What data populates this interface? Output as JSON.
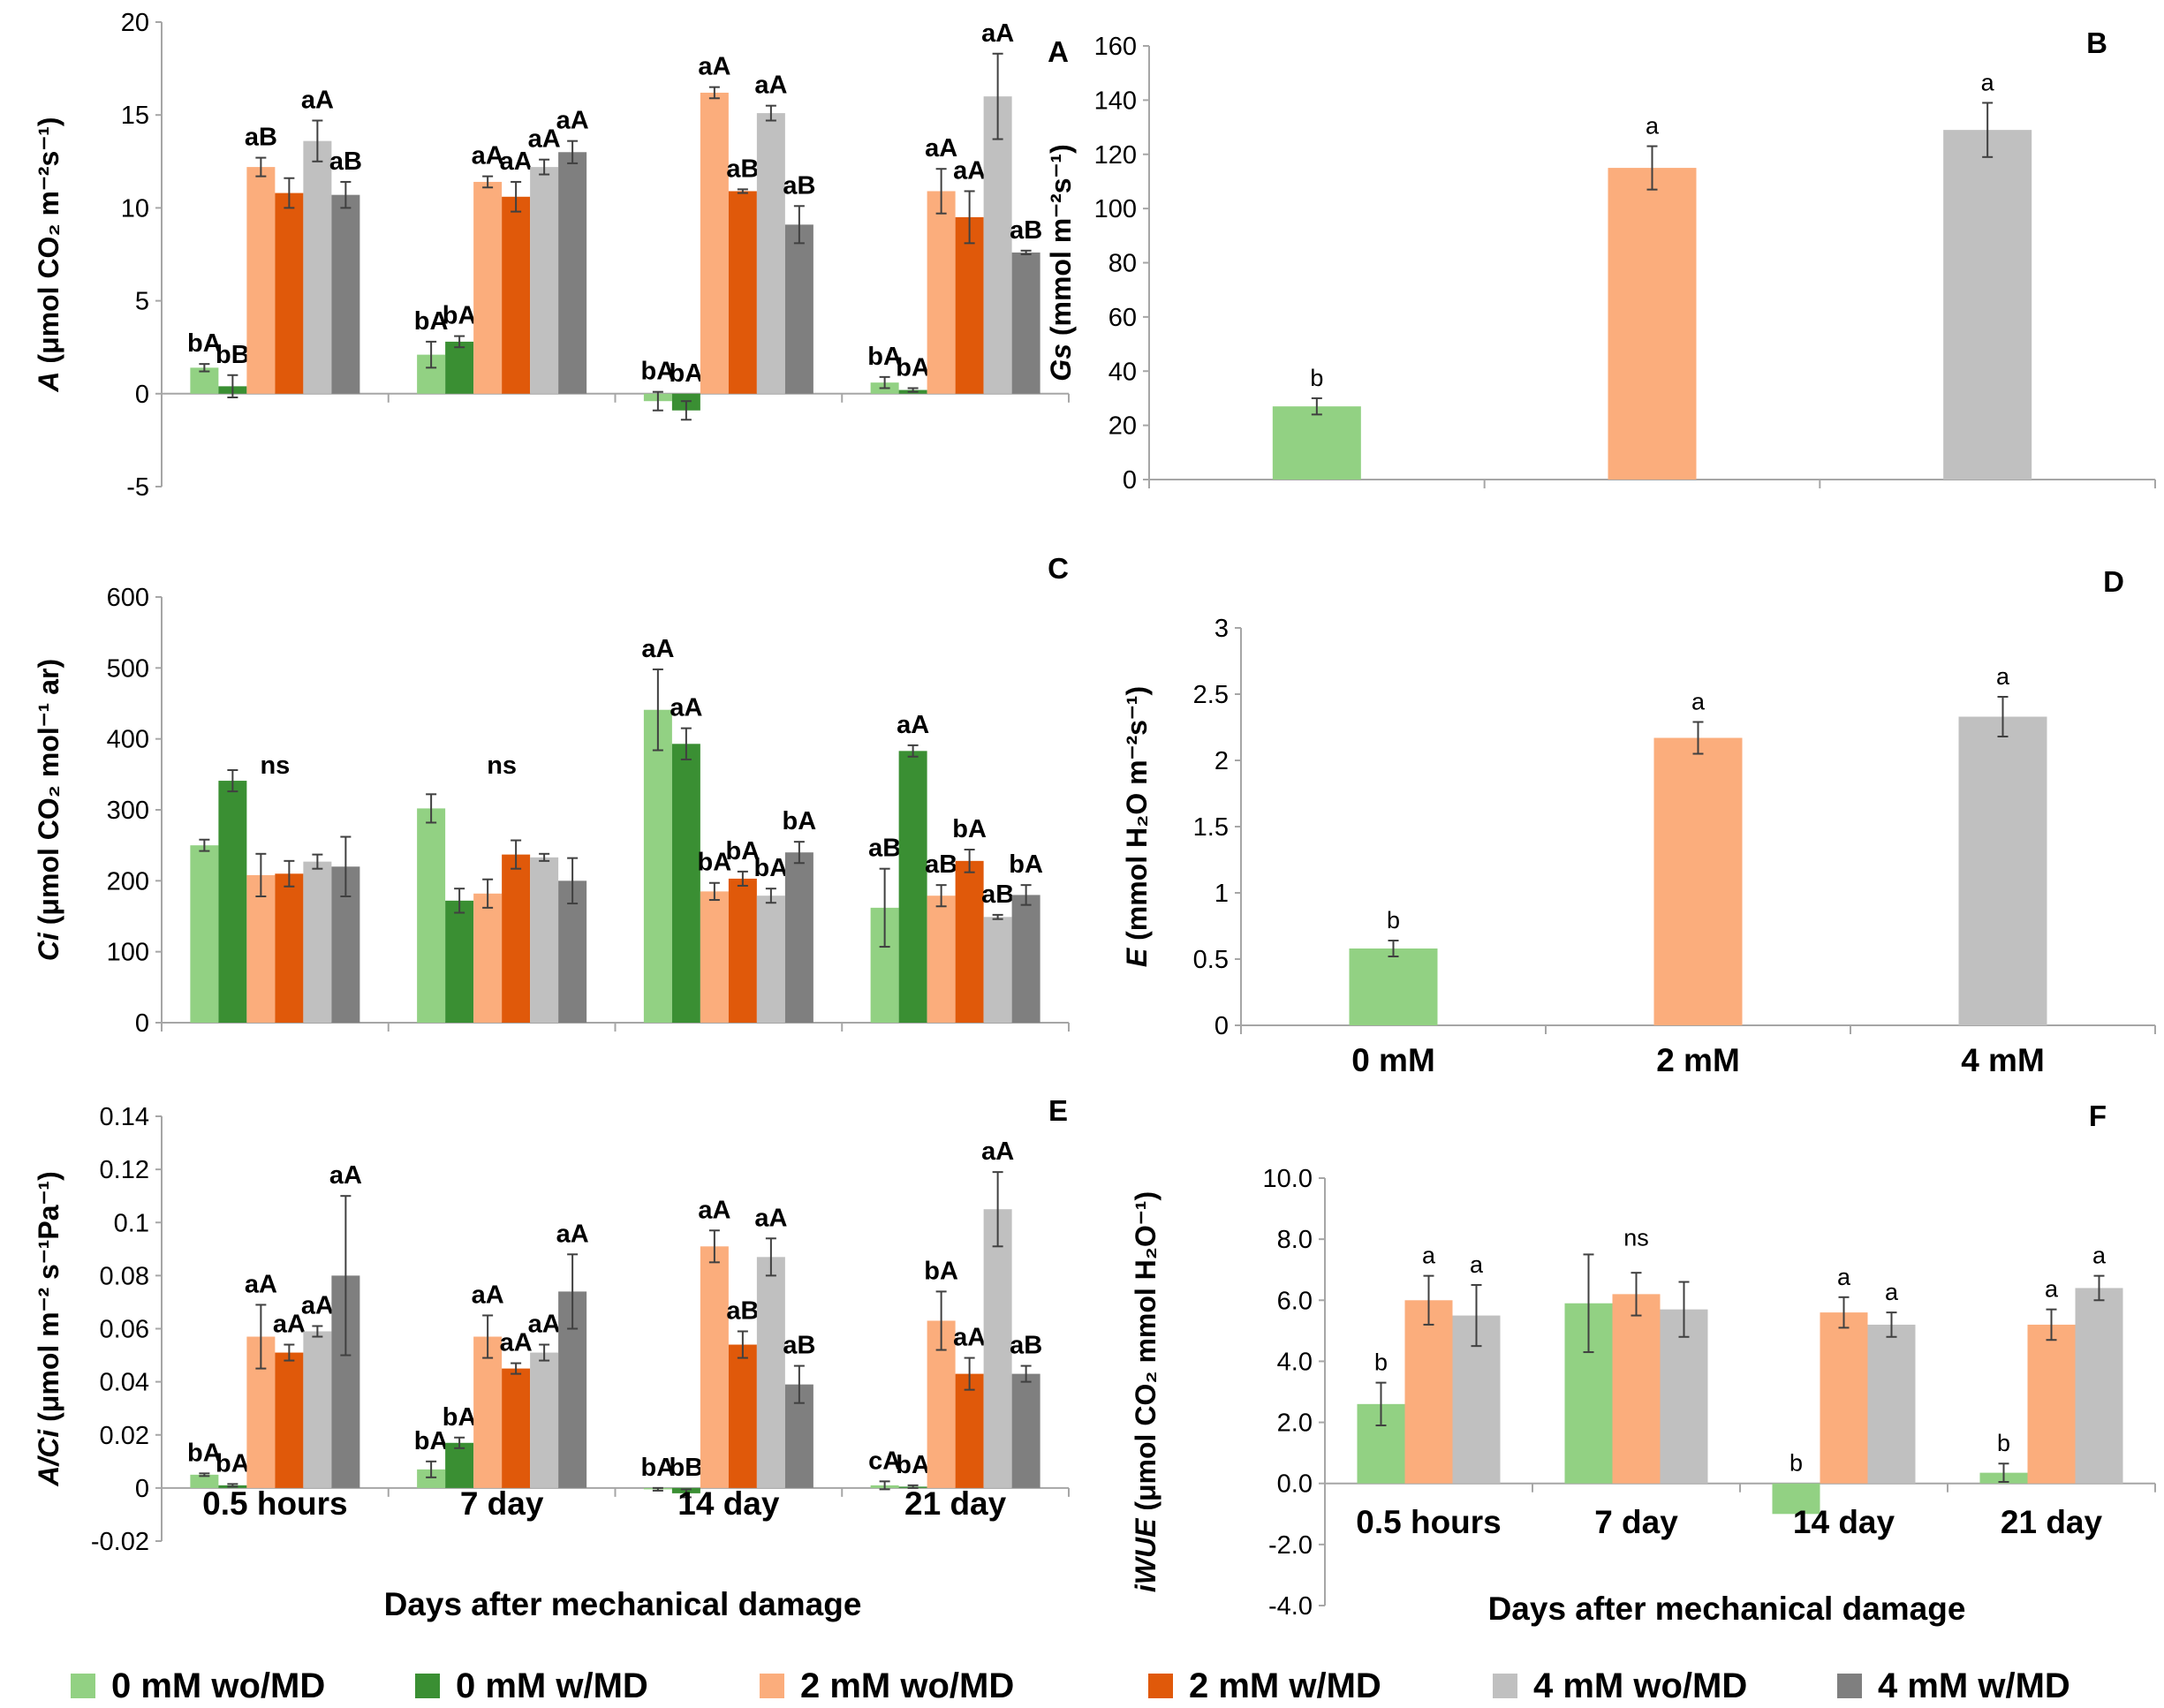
{
  "series_names": [
    "0 mM wo/MD",
    "0 mM w/MD",
    "2 mM wo/MD",
    "2 mM w/MD",
    "4 mM wo/MD",
    "4 mM w/MD"
  ],
  "colors": {
    "0 mM wo/MD": "#92d183",
    "0 mM w/MD": "#3a8f33",
    "2 mM wo/MD": "#fbad7c",
    "2 mM w/MD": "#e0590a",
    "4 mM wo/MD": "#c0c0c0",
    "4 mM w/MD": "#7f7f7f"
  },
  "x_axis_title": "Days after mechanical damage",
  "chart_data": [
    {
      "panel": "A",
      "type": "bar",
      "ylabel_italic": "A",
      "ylabel_rest": " (μmol CO₂ m⁻²s⁻¹)",
      "ylim": [
        -5,
        20
      ],
      "yticks": [
        "20",
        "15",
        "10",
        "5",
        "0",
        "-5"
      ],
      "ytick_values": [
        20,
        15,
        10,
        5,
        0,
        -5
      ],
      "categories": [
        "0.5 hours",
        "7 day",
        "14 day",
        "21 day"
      ],
      "show_category_labels": false,
      "series": [
        {
          "name": "0 mM wo/MD",
          "values": [
            1.4,
            2.1,
            -0.4,
            0.6
          ],
          "errors": [
            0.2,
            0.7,
            0.5,
            0.3
          ],
          "labels": [
            "bA",
            "bA",
            "bA",
            "bA"
          ]
        },
        {
          "name": "0 mM w/MD",
          "values": [
            0.4,
            2.8,
            -0.9,
            0.2
          ],
          "errors": [
            0.6,
            0.3,
            0.5,
            0.1
          ],
          "labels": [
            "bB",
            "bA",
            "bA",
            "bA"
          ]
        },
        {
          "name": "2 mM wo/MD",
          "values": [
            12.2,
            11.4,
            16.2,
            10.9
          ],
          "errors": [
            0.5,
            0.3,
            0.3,
            1.2
          ],
          "labels": [
            "aB",
            "aA",
            "aA",
            "aA"
          ]
        },
        {
          "name": "2 mM w/MD",
          "values": [
            10.8,
            10.6,
            10.9,
            9.5
          ],
          "errors": [
            0.8,
            0.8,
            0.1,
            1.4
          ],
          "labels": [
            "",
            "aA",
            "aB",
            "aA"
          ]
        },
        {
          "name": "4 mM wo/MD",
          "values": [
            13.6,
            12.2,
            15.1,
            16.0
          ],
          "errors": [
            1.1,
            0.4,
            0.4,
            2.3
          ],
          "labels": [
            "aA",
            "aA",
            "aA",
            "aA"
          ]
        },
        {
          "name": "4 mM w/MD",
          "values": [
            10.7,
            13.0,
            9.1,
            7.6
          ],
          "errors": [
            0.7,
            0.6,
            1.0,
            0.1
          ],
          "labels": [
            "aB",
            "aA",
            "aB",
            "aB"
          ]
        }
      ],
      "group_labels": []
    },
    {
      "panel": "B",
      "type": "bar",
      "ylabel_italic": "Gs",
      "ylabel_rest": " (mmol m⁻²s⁻¹)",
      "ylim": [
        0,
        160
      ],
      "yticks": [
        "160",
        "140",
        "120",
        "100",
        "80",
        "60",
        "40",
        "20",
        "0"
      ],
      "ytick_values": [
        160,
        140,
        120,
        100,
        80,
        60,
        40,
        20,
        0
      ],
      "categories": [
        "0 mM",
        "2 mM",
        "4 mM"
      ],
      "show_category_labels": false,
      "series": [
        {
          "name": "concentration",
          "values": [
            27,
            115,
            129
          ],
          "errors": [
            3,
            8,
            10
          ],
          "labels": [
            "b",
            "a",
            "a"
          ],
          "colors": [
            "#92d183",
            "#fbad7c",
            "#c0c0c0"
          ]
        }
      ],
      "group_labels": []
    },
    {
      "panel": "C",
      "type": "bar",
      "ylabel_italic": "Ci",
      "ylabel_rest": " (μmol CO₂ mol⁻¹ ar)",
      "ylim": [
        0,
        600
      ],
      "yticks": [
        "600",
        "500",
        "400",
        "300",
        "200",
        "100",
        "0"
      ],
      "ytick_values": [
        600,
        500,
        400,
        300,
        200,
        100,
        0
      ],
      "categories": [
        "0.5 hours",
        "7 day",
        "14 day",
        "21 day"
      ],
      "show_category_labels": false,
      "series": [
        {
          "name": "0 mM wo/MD",
          "values": [
            250,
            302,
            441,
            162
          ],
          "errors": [
            8,
            20,
            57,
            55
          ],
          "labels": [
            "",
            "",
            "aA",
            "aB"
          ]
        },
        {
          "name": "0 mM w/MD",
          "values": [
            341,
            172,
            393,
            383
          ],
          "errors": [
            15,
            17,
            22,
            8
          ],
          "labels": [
            "",
            "",
            "aA",
            "aA"
          ]
        },
        {
          "name": "2 mM wo/MD",
          "values": [
            208,
            182,
            185,
            179
          ],
          "errors": [
            30,
            20,
            12,
            15
          ],
          "labels": [
            "",
            "",
            "bA",
            "aB"
          ]
        },
        {
          "name": "2 mM w/MD",
          "values": [
            210,
            237,
            203,
            228
          ],
          "errors": [
            18,
            20,
            10,
            16
          ],
          "labels": [
            "",
            "",
            "bA",
            "bA"
          ]
        },
        {
          "name": "4 mM wo/MD",
          "values": [
            227,
            233,
            179,
            149
          ],
          "errors": [
            10,
            5,
            10,
            3
          ],
          "labels": [
            "",
            "",
            "bA",
            "aB"
          ]
        },
        {
          "name": "4 mM w/MD",
          "values": [
            220,
            200,
            240,
            180
          ],
          "errors": [
            42,
            32,
            15,
            14
          ],
          "labels": [
            "",
            "",
            "bA",
            "bA"
          ]
        }
      ],
      "group_labels": [
        "ns",
        "ns",
        "",
        ""
      ]
    },
    {
      "panel": "D",
      "type": "bar",
      "ylabel_italic": "E",
      "ylabel_rest": " (mmol H₂O m⁻²s⁻¹)",
      "ylim": [
        0,
        3
      ],
      "yticks": [
        "3",
        "2.5",
        "2",
        "1.5",
        "1",
        "0.5",
        "0"
      ],
      "ytick_values": [
        3,
        2.5,
        2,
        1.5,
        1,
        0.5,
        0
      ],
      "categories": [
        "0 mM",
        "2 mM",
        "4 mM"
      ],
      "show_category_labels": true,
      "series": [
        {
          "name": "concentration",
          "values": [
            0.58,
            2.17,
            2.33
          ],
          "errors": [
            0.06,
            0.12,
            0.15
          ],
          "labels": [
            "b",
            "a",
            "a"
          ],
          "colors": [
            "#92d183",
            "#fbad7c",
            "#c0c0c0"
          ]
        }
      ],
      "group_labels": []
    },
    {
      "panel": "E",
      "type": "bar",
      "ylabel_italic": "A/Ci",
      "ylabel_rest": " (μmol m⁻² s⁻¹Pa⁻¹)",
      "ylim": [
        -0.02,
        0.14
      ],
      "yticks": [
        "0.14",
        "0.12",
        "0.1",
        "0.08",
        "0.06",
        "0.04",
        "0.02",
        "0",
        "-0.02"
      ],
      "ytick_values": [
        0.14,
        0.12,
        0.1,
        0.08,
        0.06,
        0.04,
        0.02,
        0,
        -0.02
      ],
      "categories": [
        "0.5 hours",
        "7 day",
        "14 day",
        "21 day"
      ],
      "show_category_labels": true,
      "series": [
        {
          "name": "0 mM wo/MD",
          "values": [
            0.005,
            0.007,
            -0.0005,
            0.001
          ],
          "errors": [
            0.0005,
            0.003,
            0.0005,
            0.0015
          ],
          "labels": [
            "bA",
            "bA",
            "bA",
            "cA"
          ]
        },
        {
          "name": "0 mM w/MD",
          "values": [
            0.001,
            0.017,
            -0.002,
            0.0005
          ],
          "errors": [
            0.0005,
            0.002,
            0.0015,
            0.0005
          ],
          "labels": [
            "bA",
            "bA",
            "bB",
            "bA"
          ]
        },
        {
          "name": "2 mM wo/MD",
          "values": [
            0.057,
            0.057,
            0.091,
            0.063
          ],
          "errors": [
            0.012,
            0.008,
            0.006,
            0.011
          ],
          "labels": [
            "aA",
            "aA",
            "aA",
            "bA"
          ]
        },
        {
          "name": "2 mM w/MD",
          "values": [
            0.051,
            0.045,
            0.054,
            0.043
          ],
          "errors": [
            0.003,
            0.002,
            0.005,
            0.006
          ],
          "labels": [
            "aA",
            "aA",
            "aB",
            "aA"
          ]
        },
        {
          "name": "4 mM wo/MD",
          "values": [
            0.059,
            0.051,
            0.087,
            0.105
          ],
          "errors": [
            0.002,
            0.003,
            0.007,
            0.014
          ],
          "labels": [
            "aA",
            "aA",
            "aA",
            "aA"
          ]
        },
        {
          "name": "4 mM w/MD",
          "values": [
            0.08,
            0.074,
            0.039,
            0.043
          ],
          "errors": [
            0.03,
            0.014,
            0.007,
            0.003
          ],
          "labels": [
            "aA",
            "aA",
            "aB",
            "aB"
          ]
        }
      ],
      "group_labels": []
    },
    {
      "panel": "F",
      "type": "bar",
      "ylabel_italic": "iWUE",
      "ylabel_rest": " (μmol CO₂ mmol H₂O⁻¹)",
      "ylim": [
        -4,
        10
      ],
      "yticks": [
        "10.0",
        "8.0",
        "6.0",
        "4.0",
        "2.0",
        "0.0",
        "-2.0",
        "-4.0"
      ],
      "ytick_values": [
        10,
        8,
        6,
        4,
        2,
        0,
        -2,
        -4
      ],
      "categories": [
        "0.5 hours",
        "7 day",
        "14 day",
        "21 day"
      ],
      "show_category_labels": true,
      "series": [
        {
          "name": "0 mM",
          "values": [
            2.6,
            5.9,
            -1.0,
            0.35
          ],
          "errors": [
            0.7,
            1.6,
            0.0,
            0.3
          ],
          "labels": [
            "b",
            "",
            "b",
            "b"
          ],
          "color": "#92d183"
        },
        {
          "name": "2 mM",
          "values": [
            6.0,
            6.2,
            5.6,
            5.2
          ],
          "errors": [
            0.8,
            0.7,
            0.5,
            0.5
          ],
          "labels": [
            "a",
            "",
            "a",
            "a"
          ],
          "color": "#fbad7c"
        },
        {
          "name": "4 mM",
          "values": [
            5.5,
            5.7,
            5.2,
            6.4
          ],
          "errors": [
            1.0,
            0.9,
            0.4,
            0.4
          ],
          "labels": [
            "a",
            "",
            "a",
            "a"
          ],
          "color": "#c0c0c0"
        }
      ],
      "group_labels": [
        "",
        "ns",
        "",
        ""
      ]
    }
  ]
}
